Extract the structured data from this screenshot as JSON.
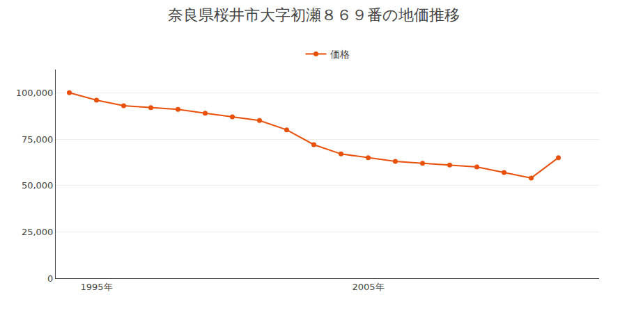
{
  "chart_data": {
    "type": "line",
    "title": "奈良県桜井市大字初瀬８６９番の地価推移",
    "x": [
      1994,
      1995,
      1996,
      1997,
      1998,
      1999,
      2000,
      2001,
      2002,
      2003,
      2004,
      2005,
      2006,
      2007,
      2008,
      2009,
      2010,
      2011,
      2012
    ],
    "series": [
      {
        "name": "価格",
        "color": "#E8500A",
        "marker": "circle",
        "values": [
          100000,
          96000,
          93000,
          92000,
          91000,
          89000,
          87000,
          85000,
          80000,
          72000,
          67000,
          65000,
          63000,
          62000,
          61000,
          60000,
          57000,
          54000,
          65000
        ]
      }
    ],
    "xlim": [
      1993.5,
      2013.5
    ],
    "xticks": [
      {
        "value": 1995,
        "label": "1995年"
      },
      {
        "value": 2005,
        "label": "2005年"
      }
    ],
    "ylim": [
      0,
      112500
    ],
    "yticks": [
      0,
      {
        "value": 25000,
        "label": "25,000"
      },
      {
        "value": 50000,
        "label": "50,000"
      },
      {
        "value": 75000,
        "label": "75,000"
      },
      {
        "value": 100000,
        "label": "100,000"
      }
    ],
    "grid": "y",
    "legend": "top"
  }
}
